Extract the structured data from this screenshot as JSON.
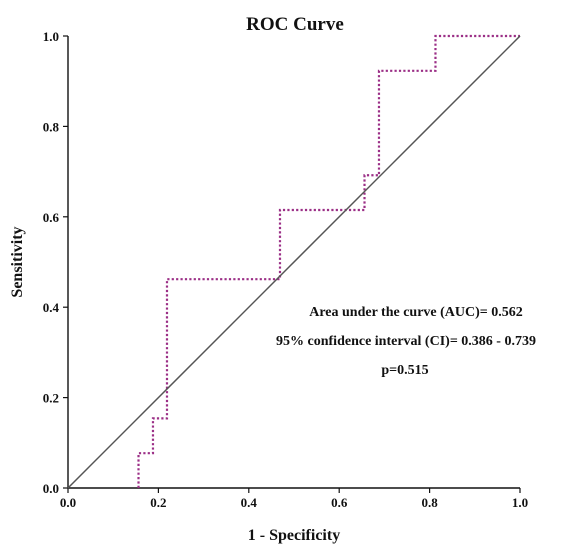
{
  "chart_data": {
    "type": "line",
    "title": "ROC Curve",
    "xlabel": "1 - Specificity",
    "ylabel": "Sensitivity",
    "xlim": [
      0,
      1
    ],
    "ylim": [
      0,
      1
    ],
    "x_ticks": [
      "0.0",
      "0.2",
      "0.4",
      "0.6",
      "0.8",
      "1.0"
    ],
    "y_ticks": [
      "0.0",
      "0.2",
      "0.4",
      "0.6",
      "0.8",
      "1.0"
    ],
    "grid": false,
    "legend": "none",
    "series": [
      {
        "style": "dotted",
        "color": "#9b2f86",
        "x": [
          0.156,
          0.156,
          0.188,
          0.188,
          0.219,
          0.219,
          0.469,
          0.469,
          0.656,
          0.656,
          0.688,
          0.688,
          0.813,
          0.813,
          1.0
        ],
        "y": [
          0.0,
          0.077,
          0.077,
          0.154,
          0.154,
          0.462,
          0.462,
          0.615,
          0.615,
          0.692,
          0.692,
          0.923,
          0.923,
          1.0,
          1.0
        ]
      },
      {
        "style": "solid",
        "color": "#555555",
        "x": [
          0,
          1
        ],
        "y": [
          0,
          1
        ]
      }
    ],
    "annotations": [
      "Area under the curve (AUC)= 0.562",
      "95% confidence interval (CI)= 0.386 - 0.739",
      "p=0.515"
    ]
  }
}
